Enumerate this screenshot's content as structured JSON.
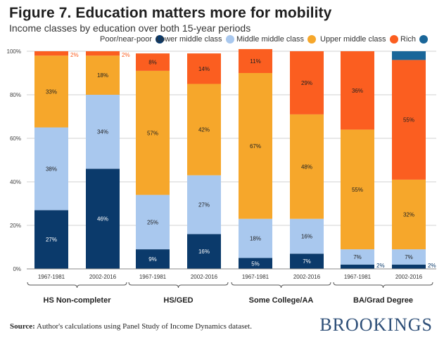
{
  "title": "Figure 7. Education matters more for mobility",
  "subtitle": "Income classes by education over both 15-year periods",
  "source": {
    "label": "Source:",
    "text": "Author's calculations using Panel Study of Income Dynamics dataset."
  },
  "brand": "BROOKINGS",
  "chart_data": {
    "type": "bar",
    "stacked": true,
    "ylim": [
      0,
      100
    ],
    "yticks": [
      "0%",
      "20%",
      "40%",
      "60%",
      "80%",
      "100%"
    ],
    "grid": true,
    "legend_position": "top",
    "categories": [
      "1967-1981",
      "2002-2016",
      "1967-1981",
      "2002-2016",
      "1967-1981",
      "2002-2016",
      "1967-1981",
      "2002-2016"
    ],
    "groups": [
      {
        "label": "HS Non-completer",
        "bars": [
          0,
          1
        ]
      },
      {
        "label": "HS/GED",
        "bars": [
          2,
          3
        ]
      },
      {
        "label": "Some College/AA",
        "bars": [
          4,
          5
        ]
      },
      {
        "label": "BA/Grad Degree",
        "bars": [
          6,
          7
        ]
      }
    ],
    "series": [
      {
        "name": "Poor/near-poor",
        "color": "#0b3a6b",
        "values": [
          27,
          46,
          9,
          16,
          5,
          7,
          2,
          2
        ],
        "labels": [
          "27%",
          "46%",
          "9%",
          "16%",
          "5%",
          "7%",
          "2%",
          "2%"
        ]
      },
      {
        "name": "Lower middle class",
        "color": "#a9c8ee",
        "values": [
          38,
          34,
          25,
          27,
          18,
          16,
          7,
          7
        ],
        "labels": [
          "38%",
          "34%",
          "25%",
          "27%",
          "18%",
          "16%",
          "7%",
          "7%"
        ]
      },
      {
        "name": "Middle middle class",
        "color": "#f6a72b",
        "values": [
          33,
          18,
          57,
          42,
          67,
          48,
          55,
          32
        ],
        "labels": [
          "33%",
          "18%",
          "57%",
          "42%",
          "67%",
          "48%",
          "55%",
          "32%"
        ]
      },
      {
        "name": "Upper middle class",
        "color": "#fb5e20",
        "values": [
          2,
          2,
          8,
          14,
          11,
          29,
          36,
          55
        ],
        "labels": [
          "2%",
          "2%",
          "8%",
          "14%",
          "11%",
          "29%",
          "36%",
          "55%"
        ]
      },
      {
        "name": "Rich",
        "color": "#1a6699",
        "values": [
          0,
          0,
          0,
          0,
          0,
          0,
          0,
          4
        ],
        "labels": [
          "",
          "",
          "",
          "",
          "",
          "",
          "",
          ""
        ]
      }
    ]
  }
}
